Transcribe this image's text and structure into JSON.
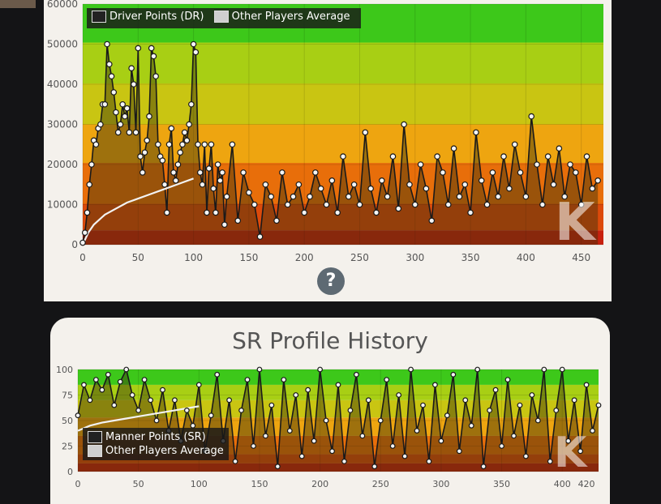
{
  "chart_data": [
    {
      "type": "line",
      "legend": [
        "Driver Points (DR)",
        "Other Players Average"
      ],
      "legend_placement": "top-left",
      "xlim": [
        0,
        470
      ],
      "ylim": [
        0,
        60000
      ],
      "xticks": [
        "0",
        "50",
        "100",
        "150",
        "200",
        "250",
        "300",
        "350",
        "400",
        "450"
      ],
      "yticks": [
        "0",
        "10000",
        "20000",
        "30000",
        "40000",
        "50000",
        "60000"
      ],
      "bands": [
        "#c7200e",
        "#dc4a0b",
        "#e86e0a",
        "#eea510",
        "#c9c512",
        "#a8cf14",
        "#3dc81a"
      ],
      "series": [
        {
          "name": "Driver Points (DR)",
          "x": [
            0,
            2,
            4,
            6,
            8,
            10,
            12,
            14,
            16,
            18,
            20,
            22,
            24,
            26,
            28,
            30,
            32,
            34,
            36,
            38,
            40,
            42,
            44,
            46,
            48,
            50,
            52,
            54,
            56,
            58,
            60,
            62,
            64,
            66,
            68,
            70,
            72,
            74,
            76,
            78,
            80,
            82,
            84,
            86,
            88,
            90,
            92,
            94,
            96,
            98,
            100,
            102,
            104,
            106,
            108,
            110,
            112,
            114,
            116,
            118,
            120,
            122,
            124,
            126,
            128,
            130,
            135,
            140,
            145,
            150,
            155,
            160,
            165,
            170,
            175,
            180,
            185,
            190,
            195,
            200,
            205,
            210,
            215,
            220,
            225,
            230,
            235,
            240,
            245,
            250,
            255,
            260,
            265,
            270,
            275,
            280,
            285,
            290,
            295,
            300,
            305,
            310,
            315,
            320,
            325,
            330,
            335,
            340,
            345,
            350,
            355,
            360,
            365,
            370,
            375,
            380,
            385,
            390,
            395,
            400,
            405,
            410,
            415,
            420,
            425,
            430,
            435,
            440,
            445,
            450,
            455,
            460,
            465
          ],
          "y": [
            500,
            3000,
            8000,
            15000,
            20000,
            26000,
            25000,
            29000,
            30000,
            35000,
            35000,
            50000,
            45000,
            42000,
            38000,
            33000,
            28000,
            30000,
            35000,
            32000,
            34000,
            28000,
            44000,
            40000,
            28000,
            49000,
            22000,
            18000,
            23000,
            26000,
            32000,
            49000,
            47000,
            42000,
            25000,
            22000,
            21000,
            15000,
            8000,
            25000,
            29000,
            18000,
            16000,
            20000,
            23000,
            25000,
            28000,
            26000,
            30000,
            35000,
            50000,
            48000,
            25000,
            18000,
            15000,
            25000,
            8000,
            19000,
            25000,
            14000,
            8000,
            20000,
            16000,
            18000,
            5000,
            12000,
            25000,
            6000,
            18000,
            13000,
            10000,
            2000,
            15000,
            12000,
            6000,
            18000,
            10000,
            12000,
            15000,
            8000,
            12000,
            18000,
            14000,
            10000,
            16000,
            8000,
            22000,
            12000,
            15000,
            10000,
            28000,
            14000,
            8000,
            16000,
            12000,
            22000,
            9000,
            30000,
            15000,
            10000,
            20000,
            14000,
            6000,
            22000,
            18000,
            10000,
            24000,
            12000,
            15000,
            8000,
            28000,
            16000,
            10000,
            18000,
            12000,
            22000,
            14000,
            25000,
            18000,
            12000,
            32000,
            20000,
            10000,
            22000,
            15000,
            24000,
            12000,
            20000,
            18000,
            10000,
            22000,
            14000,
            16000
          ]
        },
        {
          "name": "Other Players Average",
          "x": [
            0,
            5,
            10,
            20,
            30,
            40,
            50,
            60,
            70,
            80,
            90,
            100
          ],
          "y": [
            0,
            3000,
            5000,
            7500,
            9000,
            10500,
            11500,
            12500,
            13500,
            14500,
            15500,
            16500
          ]
        }
      ]
    },
    {
      "type": "line",
      "title": "SR Profile History",
      "legend": [
        "Manner Points (SR)",
        "Other Players Average"
      ],
      "legend_placement": "bottom-left",
      "xlim": [
        0,
        430
      ],
      "ylim": [
        0,
        100
      ],
      "xticks": [
        "0",
        "50",
        "100",
        "150",
        "200",
        "250",
        "300",
        "350",
        "400"
      ],
      "yticks": [
        "0",
        "25",
        "50",
        "75",
        "100"
      ],
      "extra_ticks": [
        "420"
      ],
      "bands": [
        "#c7200e",
        "#dc4a0b",
        "#e86e0a",
        "#eea510",
        "#c9c512",
        "#a8cf14",
        "#3dc81a"
      ],
      "series": [
        {
          "name": "Manner Points (SR)",
          "x": [
            0,
            5,
            10,
            15,
            20,
            25,
            30,
            35,
            40,
            45,
            50,
            55,
            60,
            65,
            70,
            75,
            80,
            85,
            90,
            95,
            100,
            105,
            110,
            115,
            120,
            125,
            130,
            135,
            140,
            145,
            150,
            155,
            160,
            165,
            170,
            175,
            180,
            185,
            190,
            195,
            200,
            205,
            210,
            215,
            220,
            225,
            230,
            235,
            240,
            245,
            250,
            255,
            260,
            265,
            270,
            275,
            280,
            285,
            290,
            295,
            300,
            305,
            310,
            315,
            320,
            325,
            330,
            335,
            340,
            345,
            350,
            355,
            360,
            365,
            370,
            375,
            380,
            385,
            390,
            395,
            400,
            405,
            410,
            415,
            420,
            425,
            430
          ],
          "y": [
            55,
            85,
            70,
            90,
            80,
            95,
            65,
            88,
            100,
            75,
            60,
            90,
            70,
            50,
            80,
            40,
            70,
            30,
            60,
            45,
            85,
            20,
            55,
            95,
            30,
            70,
            10,
            60,
            90,
            25,
            100,
            35,
            65,
            5,
            90,
            40,
            75,
            15,
            80,
            30,
            100,
            50,
            20,
            85,
            10,
            60,
            95,
            35,
            70,
            5,
            50,
            90,
            25,
            75,
            15,
            100,
            40,
            65,
            10,
            85,
            30,
            55,
            95,
            20,
            70,
            45,
            100,
            5,
            60,
            80,
            25,
            90,
            35,
            65,
            15,
            75,
            50,
            100,
            10,
            60,
            100,
            30,
            70,
            20,
            85,
            40,
            65
          ]
        },
        {
          "name": "Other Players Average",
          "x": [
            0,
            10,
            20,
            30,
            40,
            50,
            60,
            70,
            80,
            90,
            100
          ],
          "y": [
            40,
            45,
            48,
            50,
            52,
            54,
            56,
            58,
            60,
            62,
            64
          ]
        }
      ]
    }
  ],
  "help_icon": "question-mark-icon",
  "watermark": "K"
}
